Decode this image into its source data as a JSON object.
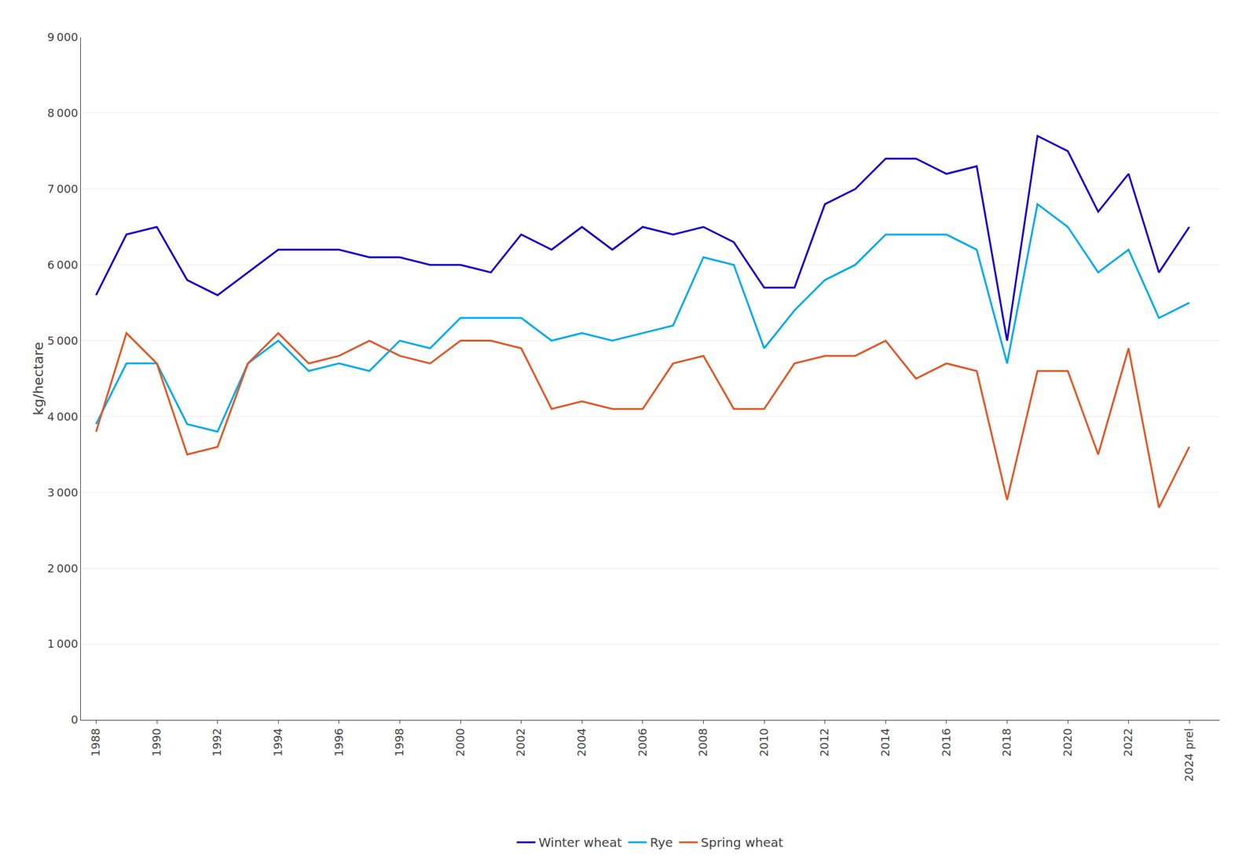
{
  "chart_data": {
    "type": "line",
    "ylabel": "kg/hectare",
    "x": [
      1988,
      1989,
      1990,
      1991,
      1992,
      1993,
      1994,
      1995,
      1996,
      1997,
      1998,
      1999,
      2000,
      2001,
      2002,
      2003,
      2004,
      2005,
      2006,
      2007,
      2008,
      2009,
      2010,
      2011,
      2012,
      2013,
      2014,
      2015,
      2016,
      2017,
      2018,
      2019,
      2020,
      2021,
      2022,
      2023,
      2024
    ],
    "series": [
      {
        "name": "Winter wheat",
        "color": "#1800cc",
        "values": [
          5600,
          6400,
          6500,
          5800,
          5600,
          5900,
          6200,
          6200,
          6200,
          6100,
          6100,
          6000,
          6000,
          5900,
          6400,
          6200,
          6500,
          6200,
          6500,
          6400,
          6500,
          6300,
          5700,
          5700,
          6800,
          7000,
          7400,
          7400,
          7200,
          7300,
          5000,
          7700,
          7500,
          6700,
          7200,
          5900,
          6500
        ]
      },
      {
        "name": "Rye",
        "color": "#00aaee",
        "values": [
          3900,
          4700,
          4700,
          3900,
          3800,
          4700,
          5000,
          4600,
          4700,
          4600,
          5000,
          4900,
          5300,
          5300,
          5300,
          5000,
          5100,
          5000,
          5100,
          5200,
          6100,
          6000,
          4900,
          5400,
          5800,
          6000,
          6400,
          6400,
          6400,
          6200,
          4700,
          6800,
          6500,
          5900,
          6200,
          5300,
          5500
        ]
      },
      {
        "name": "Spring wheat",
        "color": "#e05828",
        "values": [
          3800,
          5100,
          4700,
          3500,
          3600,
          4700,
          5100,
          4700,
          4800,
          5000,
          4800,
          4700,
          5000,
          5000,
          4900,
          4100,
          4200,
          4100,
          4100,
          4700,
          4800,
          4100,
          4100,
          4700,
          4800,
          4800,
          5000,
          4500,
          4700,
          4600,
          2900,
          4600,
          4600,
          3500,
          4900,
          2800,
          3600
        ]
      }
    ],
    "xlim": [
      1987.5,
      2025
    ],
    "xticks": [
      1988,
      1990,
      1992,
      1994,
      1996,
      1998,
      2000,
      2002,
      2004,
      2006,
      2008,
      2010,
      2012,
      2014,
      2016,
      2018,
      2020,
      2022,
      {
        "value": 2024,
        "label": "2024 prel"
      }
    ],
    "ylim": [
      0,
      9000
    ],
    "yticks": [
      0,
      {
        "value": 1000,
        "label": "1 000"
      },
      {
        "value": 2000,
        "label": "2 000"
      },
      {
        "value": 3000,
        "label": "3 000"
      },
      {
        "value": 4000,
        "label": "4 000"
      },
      {
        "value": 5000,
        "label": "5 000"
      },
      {
        "value": 6000,
        "label": "6 000"
      },
      {
        "value": 7000,
        "label": "7 000"
      },
      {
        "value": 8000,
        "label": "8 000"
      },
      {
        "value": 9000,
        "label": "9 000"
      }
    ],
    "grid": "y",
    "legend": "bottom"
  }
}
